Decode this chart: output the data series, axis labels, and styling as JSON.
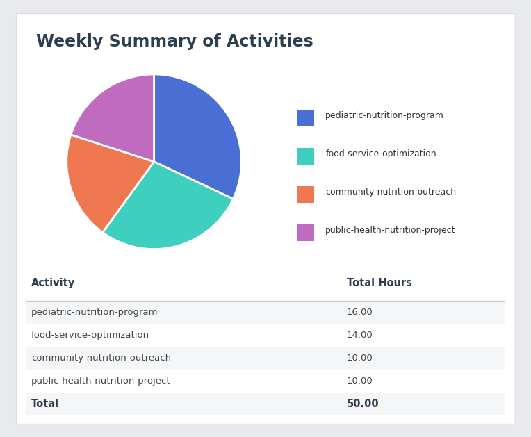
{
  "title": "Weekly Summary of Activities",
  "title_color": "#2c3e50",
  "background_color": "#e8eaed",
  "card_color": "#ffffff",
  "pie_data": [
    16,
    14,
    10,
    10
  ],
  "pie_labels": [
    "pediatric-nutrition-program",
    "food-service-optimization",
    "community-nutrition-outreach",
    "public-health-nutrition-project"
  ],
  "pie_colors": [
    "#4a6fd4",
    "#3ecfbf",
    "#f07850",
    "#bf6bbf"
  ],
  "table_headers": [
    "Activity",
    "Total Hours"
  ],
  "table_rows": [
    [
      "pediatric-nutrition-program",
      "16.00"
    ],
    [
      "food-service-optimization",
      "14.00"
    ],
    [
      "community-nutrition-outreach",
      "10.00"
    ],
    [
      "public-health-nutrition-project",
      "10.00"
    ]
  ],
  "table_total": [
    "Total",
    "50.00"
  ],
  "row_colors": [
    "#f5f6f8",
    "#ffffff",
    "#f5f6f8",
    "#ffffff"
  ],
  "total_row_color": "#f5f6f8",
  "figsize": [
    7.64,
    6.29
  ],
  "dpi": 100
}
